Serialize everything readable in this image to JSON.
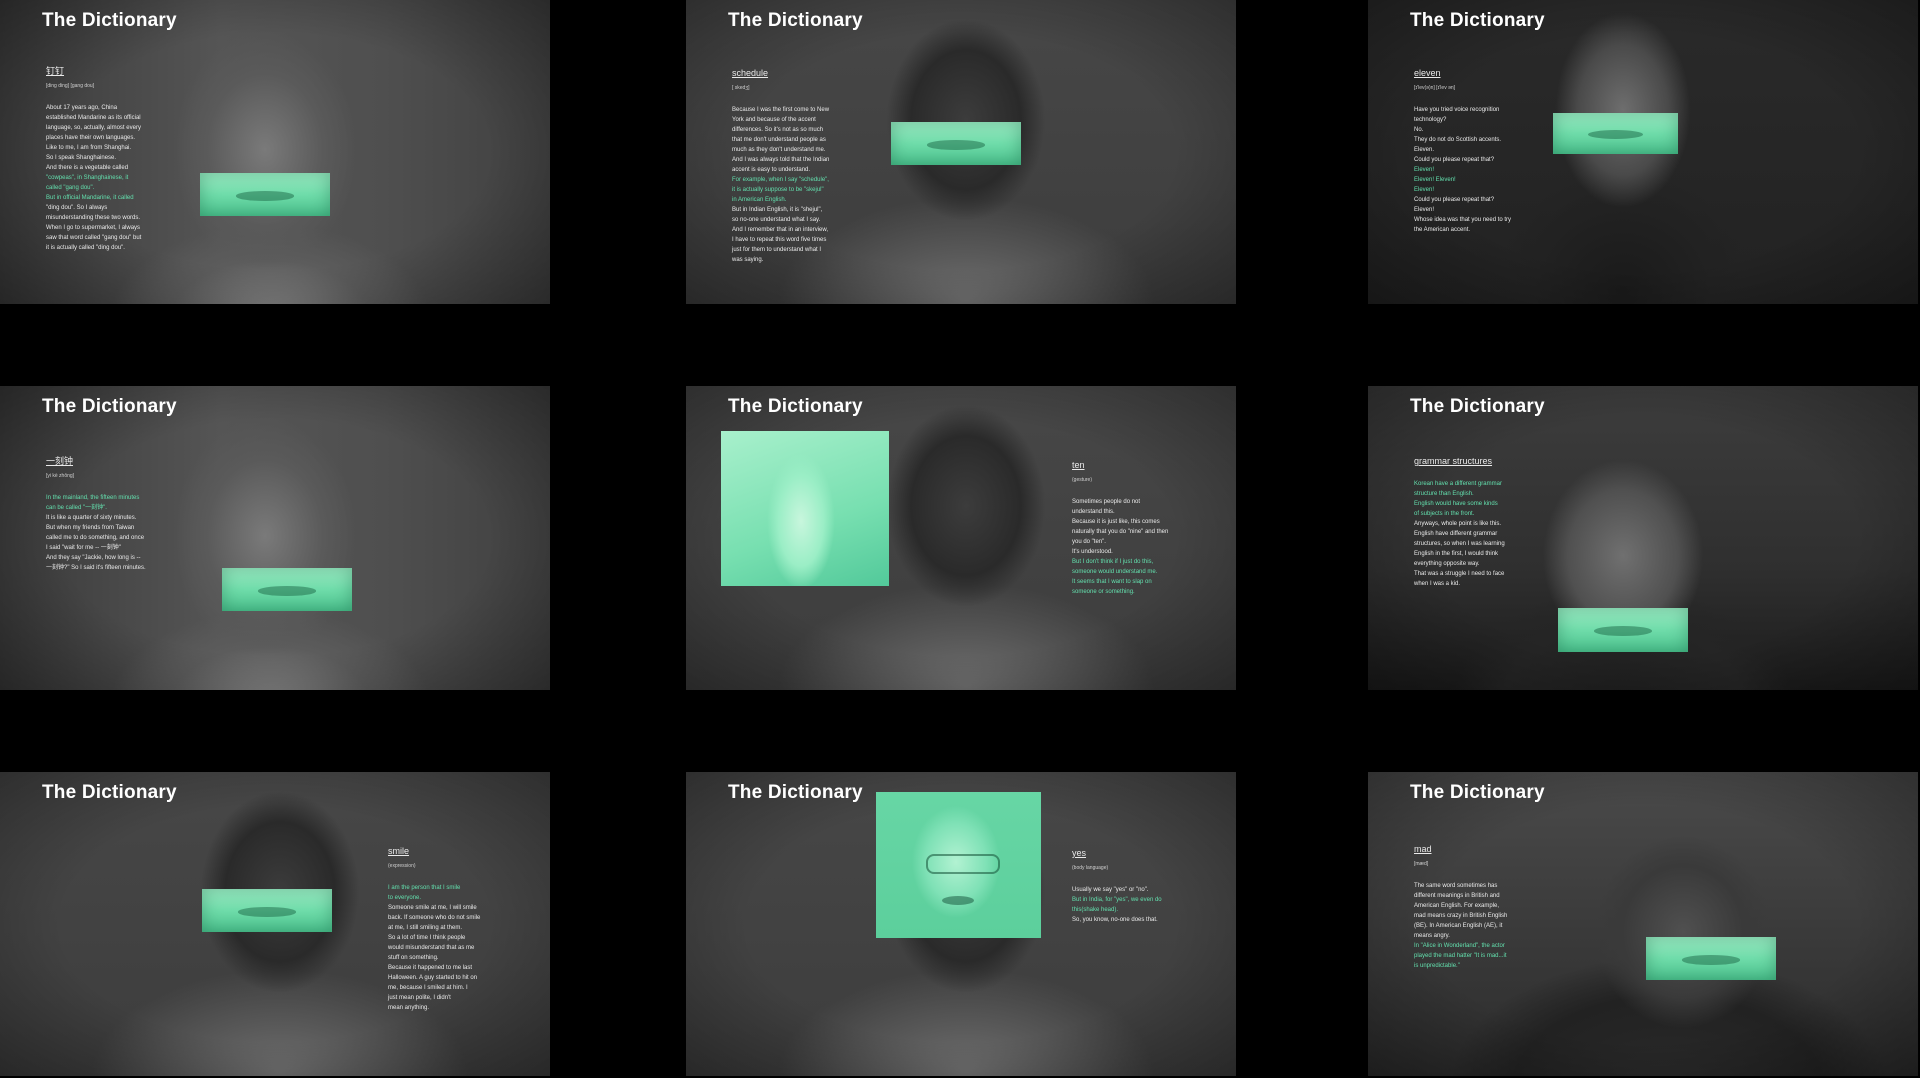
{
  "panels": [
    {
      "title": "The Dictionary",
      "word": "钉钉",
      "pron": "[ding ding] [gang dou]",
      "lines": [
        {
          "t": "About 17 years ago, China",
          "hl": false
        },
        {
          "t": "established Mandarine as its official",
          "hl": false
        },
        {
          "t": "language, so, actually, almost every",
          "hl": false
        },
        {
          "t": "places have their own languages.",
          "hl": false
        },
        {
          "t": "Like to me, I am from Shanghai.",
          "hl": false
        },
        {
          "t": "So I speak Shanghainese.",
          "hl": false
        },
        {
          "t": "And there is a vegetable called",
          "hl": false
        },
        {
          "t": "\"cowpeas\", in Shanghainese, it",
          "hl": true
        },
        {
          "t": "called \"gang dou\".",
          "hl": true
        },
        {
          "t": "But in official Mandarine, it called",
          "hl": true
        },
        {
          "t": "\"ding dou\". So I always",
          "hl": false
        },
        {
          "t": "misunderstanding these two words.",
          "hl": false
        },
        {
          "t": "When I go to supermarket, I always",
          "hl": false
        },
        {
          "t": "saw that word called \"gang dou\" but",
          "hl": false
        },
        {
          "t": "it is actually called \"ding dou\".",
          "hl": false
        }
      ]
    },
    {
      "title": "The Dictionary",
      "word": "schedule",
      "pron": "[ skedʒ]",
      "lines": [
        {
          "t": "Because I was the first come to New",
          "hl": false
        },
        {
          "t": "York and because of the accent",
          "hl": false
        },
        {
          "t": "differences. So it's not as so much",
          "hl": false
        },
        {
          "t": "that me don't understand people as",
          "hl": false
        },
        {
          "t": "much as they don't understand me.",
          "hl": false
        },
        {
          "t": "And I was always told that the Indian",
          "hl": false
        },
        {
          "t": "accent is easy to understand.",
          "hl": false
        },
        {
          "t": "For example, when I say \"schedule\",",
          "hl": true
        },
        {
          "t": "it is actually suppose to be \"skejul\"",
          "hl": true
        },
        {
          "t": "in American English.",
          "hl": true
        },
        {
          "t": "But in Indian English, it is \"shejul\",",
          "hl": false
        },
        {
          "t": "so no-one understand what I say.",
          "hl": false
        },
        {
          "t": "And I remember that in an interview,",
          "hl": false
        },
        {
          "t": "I have to repeat this word five times",
          "hl": false
        },
        {
          "t": "just for them to understand what I",
          "hl": false
        },
        {
          "t": "was saying.",
          "hl": false
        }
      ]
    },
    {
      "title": "The Dictionary",
      "word": "eleven",
      "pron": "[ɪ'lev(ə)n] [ɪ'lev ən]",
      "lines": [
        {
          "t": "Have you tried voice recognition",
          "hl": false
        },
        {
          "t": "technology?",
          "hl": false
        },
        {
          "t": "No.",
          "hl": false
        },
        {
          "t": "They do not do Scottish accents.",
          "hl": false
        },
        {
          "t": "Eleven.",
          "hl": false
        },
        {
          "t": "Could you please repeat that?",
          "hl": false
        },
        {
          "t": "Eleven!",
          "hl": true
        },
        {
          "t": "Eleven! Eleven!",
          "hl": true
        },
        {
          "t": "Eleven!",
          "hl": true
        },
        {
          "t": "Could you please repeat that?",
          "hl": false
        },
        {
          "t": "Eleven!",
          "hl": false
        },
        {
          "t": "Whose idea was that you need to try",
          "hl": false
        },
        {
          "t": "the American accent.",
          "hl": false
        }
      ]
    },
    {
      "title": "The Dictionary",
      "word": "一刻钟",
      "pron": "[yi kè zhōng]",
      "lines": [
        {
          "t": "In the mainland, the fifteen minutes",
          "hl": true
        },
        {
          "t": "can be called \"一刻钟\".",
          "hl": true
        },
        {
          "t": "It is like a quarter of sixty minutes.",
          "hl": false
        },
        {
          "t": "But when my friends from Taiwan",
          "hl": false
        },
        {
          "t": "called me to do something, and once",
          "hl": false
        },
        {
          "t": "I said \"wait for me -- 一刻钟\"",
          "hl": false
        },
        {
          "t": "And they say \"Jackie, how long is --",
          "hl": false
        },
        {
          "t": "一刻钟?\" So I said it's fifteen minutes.",
          "hl": false
        }
      ]
    },
    {
      "title": "The Dictionary",
      "word": "ten",
      "pron": "(gesture)",
      "lines": [
        {
          "t": "Sometimes people do not",
          "hl": false
        },
        {
          "t": "understand this.",
          "hl": false
        },
        {
          "t": "Because it is just like, this comes",
          "hl": false
        },
        {
          "t": "naturally that you do \"nine\" and then",
          "hl": false
        },
        {
          "t": "you do \"ten\".",
          "hl": false
        },
        {
          "t": "It's understood.",
          "hl": false
        },
        {
          "t": "But I don't think if I just do this,",
          "hl": true
        },
        {
          "t": "someone would understand me.",
          "hl": true
        },
        {
          "t": "It seems that I want to slap on",
          "hl": true
        },
        {
          "t": "someone or something.",
          "hl": true
        }
      ]
    },
    {
      "title": "The Dictionary",
      "word": "grammar structures",
      "pron": "",
      "lines": [
        {
          "t": "Korean have a different grammar",
          "hl": true
        },
        {
          "t": "structure than English.",
          "hl": true
        },
        {
          "t": "English would have some kinds",
          "hl": true
        },
        {
          "t": "of subjects in the front.",
          "hl": true
        },
        {
          "t": "Anyways, whole point is like this.",
          "hl": false
        },
        {
          "t": "English have different grammar",
          "hl": false
        },
        {
          "t": "structures, so when I was learning",
          "hl": false
        },
        {
          "t": "English in the first, I would think",
          "hl": false
        },
        {
          "t": "everything opposite way.",
          "hl": false
        },
        {
          "t": "That was a struggle I need to face",
          "hl": false
        },
        {
          "t": "when I was a kid.",
          "hl": false
        }
      ]
    },
    {
      "title": "The Dictionary",
      "word": "smile",
      "pron": "(expression)",
      "lines": [
        {
          "t": "I am the person that I smile",
          "hl": true
        },
        {
          "t": "to everyone.",
          "hl": true
        },
        {
          "t": "Someone smile at me, I will smile",
          "hl": false
        },
        {
          "t": "back. If someone who do not smile",
          "hl": false
        },
        {
          "t": "at me, I still smiling at them.",
          "hl": false
        },
        {
          "t": "So a lot of time I think people",
          "hl": false
        },
        {
          "t": "would misunderstand that as me",
          "hl": false
        },
        {
          "t": "stuff on something.",
          "hl": false
        },
        {
          "t": "Because it happened to me last",
          "hl": false
        },
        {
          "t": "Halloween. A guy started to hit on",
          "hl": false
        },
        {
          "t": "me, because I smiled at him. I",
          "hl": false
        },
        {
          "t": "just mean polite, I didn't",
          "hl": false
        },
        {
          "t": "mean anything.",
          "hl": false
        }
      ]
    },
    {
      "title": "The Dictionary",
      "word": "yes",
      "pron": "(body language)",
      "lines": [
        {
          "t": "Usually we say \"yes\" or \"no\".",
          "hl": false
        },
        {
          "t": "But in India, for \"yes\", we even do",
          "hl": true
        },
        {
          "t": "this(shake head).",
          "hl": true
        },
        {
          "t": "So, you know, no-one does that.",
          "hl": false
        }
      ]
    },
    {
      "title": "The Dictionary",
      "word": "mad",
      "pron": "[mæd]",
      "lines": [
        {
          "t": "The same word sometimes has",
          "hl": false
        },
        {
          "t": "different meanings in British and",
          "hl": false
        },
        {
          "t": "American English. For example,",
          "hl": false
        },
        {
          "t": "mad means crazy in British English",
          "hl": false
        },
        {
          "t": "(BE). In American English (AE), it",
          "hl": false
        },
        {
          "t": "means angry.",
          "hl": false
        },
        {
          "t": "In \"Alice in Wonderland\", the actor",
          "hl": true
        },
        {
          "t": "played the mad hatter \"It is mad...it",
          "hl": true
        },
        {
          "t": "is unpredictable.\"",
          "hl": true
        }
      ]
    }
  ]
}
